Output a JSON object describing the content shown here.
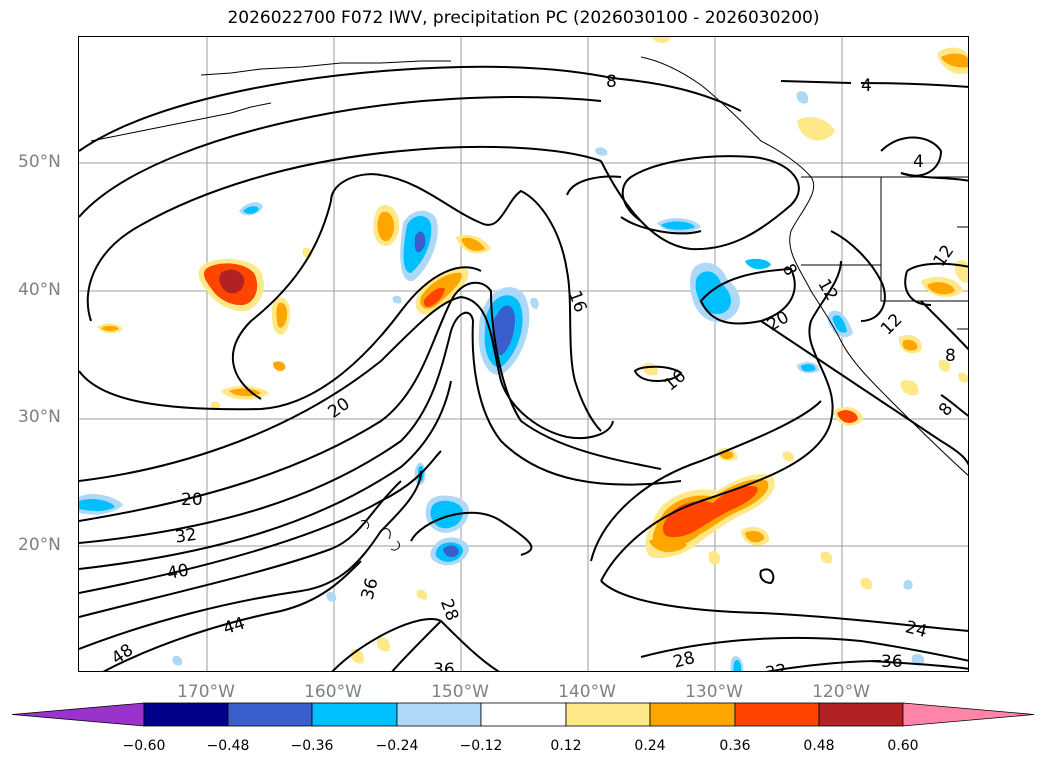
{
  "title": "2026022700 F072 IWV, precipitation PC (2026030100 - 2026030200)",
  "map": {
    "lat_labels": [
      "50°N",
      "40°N",
      "30°N",
      "20°N"
    ],
    "lon_labels": [
      "170°W",
      "160°W",
      "150°W",
      "140°W",
      "130°W",
      "120°W"
    ],
    "contour_labels": [
      "8",
      "4",
      "4",
      "16",
      "16",
      "20",
      "20",
      "20",
      "12",
      "12",
      "8",
      "8",
      "8",
      "12",
      "32",
      "40",
      "44",
      "48",
      "36",
      "28",
      "36",
      "28",
      "24",
      "36",
      "32"
    ],
    "contour_color": "#000000",
    "grid": true
  },
  "colorbar": {
    "ticks": [
      "−0.60",
      "−0.48",
      "−0.36",
      "−0.24",
      "−0.12",
      "0.12",
      "0.24",
      "0.36",
      "0.48",
      "0.60"
    ],
    "colors": [
      "#9933cc",
      "#00008b",
      "#3a5fcd",
      "#00bfff",
      "#add8f7",
      "#ffffff",
      "#ffe888",
      "#ffa500",
      "#ff4500",
      "#b22222",
      "#ff85a8"
    ],
    "extend": "both"
  }
}
